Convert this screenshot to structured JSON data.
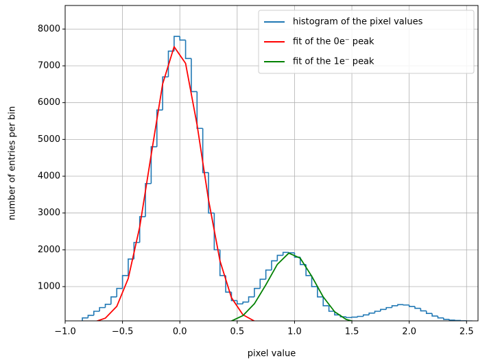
{
  "chart_data": {
    "type": "histogram",
    "xlabel": "pixel value",
    "ylabel": "number of entries per bin",
    "xlim": [
      -1.0,
      2.6
    ],
    "ylim": [
      69,
      8640
    ],
    "xticks": [
      {
        "value": -1.0,
        "label": "−1.0"
      },
      {
        "value": -0.5,
        "label": "−0.5"
      },
      {
        "value": 0,
        "label": "0.0"
      },
      {
        "value": 0.5,
        "label": "0.5"
      },
      {
        "value": 1,
        "label": "1.0"
      },
      {
        "value": 1.5,
        "label": "1.5"
      },
      {
        "value": 2,
        "label": "2.0"
      },
      {
        "value": 2.5,
        "label": "2.5"
      }
    ],
    "yticks": [
      1000,
      2000,
      3000,
      4000,
      5000,
      6000,
      7000,
      8000
    ],
    "grid": true,
    "legend": "upper right",
    "histogram": {
      "name": "histogram of the pixel values",
      "color": "#1f77b4",
      "bins": [
        -0.85,
        -0.8,
        -0.75,
        -0.7,
        -0.65,
        -0.6,
        -0.55,
        -0.5,
        -0.45,
        -0.4,
        -0.35,
        -0.3,
        -0.25,
        -0.2,
        -0.15,
        -0.1,
        -0.05,
        0,
        0.05,
        0.1,
        0.15,
        0.2,
        0.25,
        0.3,
        0.35,
        0.4,
        0.45,
        0.5,
        0.55,
        0.6,
        0.65,
        0.7,
        0.75,
        0.8,
        0.85,
        0.9,
        0.95,
        1,
        1.05,
        1.1,
        1.15,
        1.2,
        1.25,
        1.3,
        1.35,
        1.4,
        1.45,
        1.5,
        1.55,
        1.6,
        1.65,
        1.7,
        1.75,
        1.8,
        1.85,
        1.9,
        1.95,
        2,
        2.05,
        2.1,
        2.15,
        2.2,
        2.25,
        2.3,
        2.35,
        2.4,
        2.45,
        2.5,
        2.55
      ],
      "values": [
        150,
        220,
        330,
        430,
        520,
        720,
        950,
        1300,
        1750,
        2200,
        2900,
        3800,
        4800,
        5800,
        6700,
        7400,
        7800,
        7700,
        7200,
        6300,
        5300,
        4100,
        3000,
        2000,
        1300,
        850,
        620,
        530,
        580,
        720,
        950,
        1200,
        1450,
        1700,
        1850,
        1930,
        1920,
        1800,
        1600,
        1300,
        1000,
        720,
        480,
        330,
        230,
        180,
        160,
        170,
        190,
        230,
        280,
        330,
        380,
        430,
        480,
        510,
        500,
        460,
        410,
        340,
        270,
        200,
        150,
        110,
        90,
        80,
        70,
        65
      ]
    },
    "x": [
      -0.85,
      -0.75,
      -0.65,
      -0.55,
      -0.45,
      -0.35,
      -0.25,
      -0.15,
      -0.05,
      0.05,
      0.15,
      0.25,
      0.35,
      0.45,
      0.55,
      0.65,
      0.75,
      0.85,
      0.95,
      1.05,
      1.15,
      1.25,
      1.35,
      1.45,
      1.55,
      1.65,
      1.75,
      1.85,
      1.95,
      2.05,
      2.15,
      2.25,
      2.35,
      2.45,
      2.55
    ],
    "series": [
      {
        "name": "fit of the 0e⁻ peak",
        "color": "#ff0000",
        "values": [
          7,
          36,
          142,
          462,
          1221,
          2620,
          4579,
          6506,
          7519,
          7067,
          5402,
          3359,
          1699,
          699,
          234,
          64,
          14,
          3,
          0,
          0,
          0,
          0,
          0,
          0,
          0,
          0,
          0,
          0,
          0,
          0,
          0,
          0,
          0,
          0,
          0
        ]
      },
      {
        "name": "fit of the 1e⁻ peak",
        "color": "#008000",
        "values": [
          0,
          0,
          0,
          0,
          0,
          0,
          0,
          0,
          0,
          0,
          0,
          3,
          16,
          65,
          212,
          534,
          1048,
          1604,
          1910,
          1772,
          1281,
          721,
          316,
          108,
          29,
          6,
          1,
          0,
          0,
          0,
          0,
          0,
          0,
          0,
          0
        ]
      }
    ]
  }
}
